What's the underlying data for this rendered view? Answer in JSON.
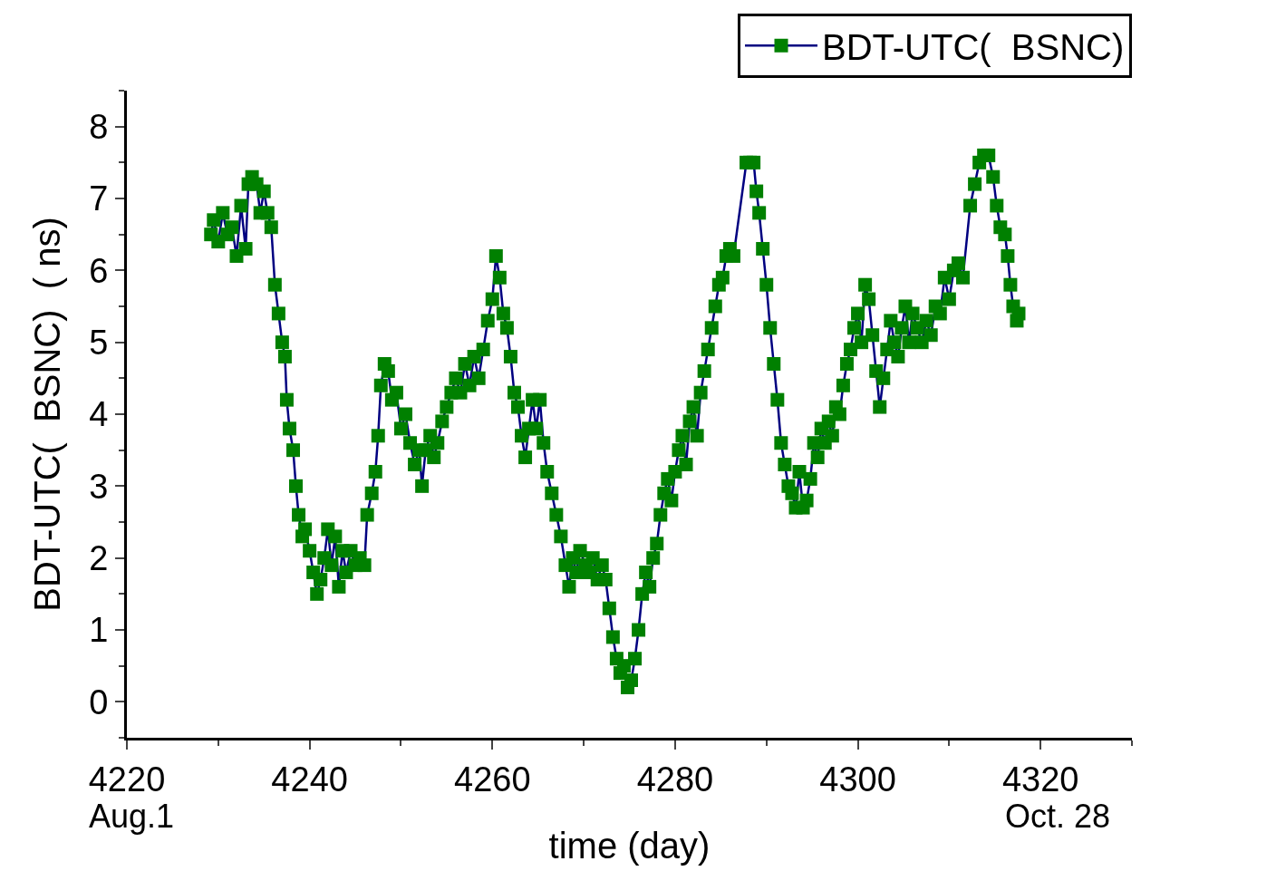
{
  "chart_data": {
    "type": "line",
    "xlabel": "time (day)",
    "ylabel": "BDT-UTC(  BSNC)  ( ns)",
    "annotations": [
      "Aug.1",
      "Oct. 28"
    ],
    "xlim": [
      4220,
      4330
    ],
    "xticks": [
      4220,
      4240,
      4260,
      4280,
      4300,
      4320
    ],
    "ylim": [
      -0.5,
      8.5
    ],
    "yticks": [
      0,
      1,
      2,
      3,
      4,
      5,
      6,
      7,
      8
    ],
    "grid": false,
    "legend": "top right",
    "marker": "square",
    "line_style": "solid",
    "series": [
      {
        "name": "BDT-UTC(  BSNC)",
        "color": "#008000",
        "x": [
          4229.2,
          4229.5,
          4230,
          4230.5,
          4231,
          4231.5,
          4232,
          4232.5,
          4233,
          4233.3,
          4233.7,
          4234.2,
          4234.6,
          4235,
          4235.4,
          4235.8,
          4236.2,
          4236.6,
          4237,
          4237.3,
          4237.5,
          4237.8,
          4238.2,
          4238.5,
          4238.8,
          4239.2,
          4239.5,
          4240,
          4240.4,
          4240.8,
          4241.2,
          4241.6,
          4242,
          4242.4,
          4242.8,
          4243.2,
          4243.6,
          4244,
          4244.5,
          4245,
          4245.5,
          4246,
          4246.3,
          4246.8,
          4247.2,
          4247.5,
          4247.8,
          4248.2,
          4248.6,
          4249,
          4249.5,
          4250,
          4250.5,
          4251,
          4251.5,
          4252,
          4252.3,
          4252.7,
          4253.2,
          4253.6,
          4254,
          4254.5,
          4255,
          4255.5,
          4256,
          4256.5,
          4257,
          4257.5,
          4258,
          4258.5,
          4259,
          4259.5,
          4260,
          4260.4,
          4260.8,
          4261.2,
          4261.6,
          4262,
          4262.4,
          4262.8,
          4263.2,
          4263.6,
          4264,
          4264.4,
          4264.8,
          4265.2,
          4265.6,
          4266,
          4266.5,
          4267,
          4267.5,
          4268,
          4268.4,
          4268.8,
          4269.2,
          4269.6,
          4270.2,
          4270.6,
          4271,
          4271.5,
          4272,
          4272.4,
          4272.8,
          4273.2,
          4273.6,
          4274,
          4274.4,
          4274.8,
          4275.2,
          4275.6,
          4276,
          4276.4,
          4276.8,
          4277.2,
          4277.6,
          4278,
          4278.4,
          4278.8,
          4279.2,
          4279.6,
          4280,
          4280.4,
          4280.8,
          4281.2,
          4281.6,
          4282,
          4282.4,
          4282.8,
          4283.2,
          4283.6,
          4284,
          4284.4,
          4284.8,
          4285.2,
          4285.6,
          4286,
          4286.4,
          4287.8,
          4288.2,
          4288.6,
          4288.9,
          4289.2,
          4289.6,
          4290,
          4290.4,
          4290.8,
          4291.2,
          4291.6,
          4292,
          4292.4,
          4292.8,
          4293.2,
          4293.6,
          4294,
          4294.4,
          4294.8,
          4295.2,
          4295.6,
          4296,
          4296.4,
          4296.8,
          4297.2,
          4297.6,
          4298,
          4298.4,
          4298.8,
          4299.2,
          4299.6,
          4300,
          4300.4,
          4300.8,
          4301.2,
          4301.6,
          4302,
          4302.4,
          4302.8,
          4303.2,
          4303.6,
          4304,
          4304.4,
          4304.8,
          4305.2,
          4305.6,
          4306,
          4306.5,
          4307,
          4307.5,
          4308,
          4308.5,
          4309,
          4309.5,
          4310,
          4310.5,
          4311,
          4311.5,
          4312.3,
          4312.8,
          4313.3,
          4313.8,
          4314.3,
          4314.8,
          4315.2,
          4315.6,
          4316.1,
          4316.4,
          4316.7,
          4317,
          4317.4,
          4317.6
        ],
        "values": [
          6.5,
          6.7,
          6.4,
          6.8,
          6.5,
          6.6,
          6.2,
          6.9,
          6.3,
          7.2,
          7.3,
          7.2,
          6.8,
          7.1,
          6.8,
          6.6,
          5.8,
          5.4,
          5.0,
          4.8,
          4.2,
          3.8,
          3.5,
          3.0,
          2.6,
          2.3,
          2.4,
          2.1,
          1.8,
          1.5,
          1.7,
          2.0,
          2.4,
          1.9,
          2.3,
          1.6,
          2.1,
          1.8,
          2.1,
          1.9,
          2.0,
          1.9,
          2.6,
          2.9,
          3.2,
          3.7,
          4.4,
          4.7,
          4.6,
          4.2,
          4.3,
          3.8,
          4.0,
          3.6,
          3.3,
          3.5,
          3.0,
          3.5,
          3.7,
          3.4,
          3.6,
          3.9,
          4.1,
          4.3,
          4.5,
          4.3,
          4.7,
          4.4,
          4.8,
          4.5,
          4.9,
          5.3,
          5.6,
          6.2,
          5.9,
          5.4,
          5.2,
          4.8,
          4.3,
          4.1,
          3.7,
          3.4,
          3.8,
          4.2,
          3.8,
          4.2,
          3.6,
          3.2,
          2.9,
          2.6,
          2.3,
          1.9,
          1.6,
          2.0,
          1.8,
          2.1,
          1.9,
          1.8,
          2.0,
          1.7,
          1.9,
          1.7,
          1.3,
          0.9,
          0.6,
          0.4,
          0.5,
          0.2,
          0.3,
          0.6,
          1.0,
          1.5,
          1.8,
          1.6,
          2.0,
          2.2,
          2.6,
          2.9,
          3.1,
          2.8,
          3.2,
          3.5,
          3.7,
          3.3,
          3.9,
          4.1,
          3.7,
          4.3,
          4.6,
          4.9,
          5.2,
          5.5,
          5.8,
          5.9,
          6.2,
          6.3,
          6.2,
          7.5,
          7.5,
          7.5,
          7.1,
          6.8,
          6.3,
          5.8,
          5.2,
          4.7,
          4.2,
          3.6,
          3.3,
          3.0,
          2.9,
          2.7,
          3.2,
          2.7,
          2.8,
          3.1,
          3.6,
          3.4,
          3.8,
          3.6,
          3.9,
          3.7,
          4.1,
          4.0,
          4.4,
          4.7,
          4.9,
          5.2,
          5.4,
          5.0,
          5.8,
          5.6,
          5.1,
          4.6,
          4.1,
          4.5,
          4.9,
          5.3,
          5.0,
          4.8,
          5.2,
          5.5,
          5.0,
          5.4,
          5.2,
          5.0,
          5.3,
          5.1,
          5.5,
          5.4,
          5.9,
          5.6,
          6.0,
          6.1,
          5.9,
          6.9,
          7.2,
          7.5,
          7.6,
          7.6,
          7.3,
          6.9,
          6.6,
          6.5,
          6.2,
          5.8,
          5.5,
          5.3,
          5.4
        ]
      }
    ]
  }
}
